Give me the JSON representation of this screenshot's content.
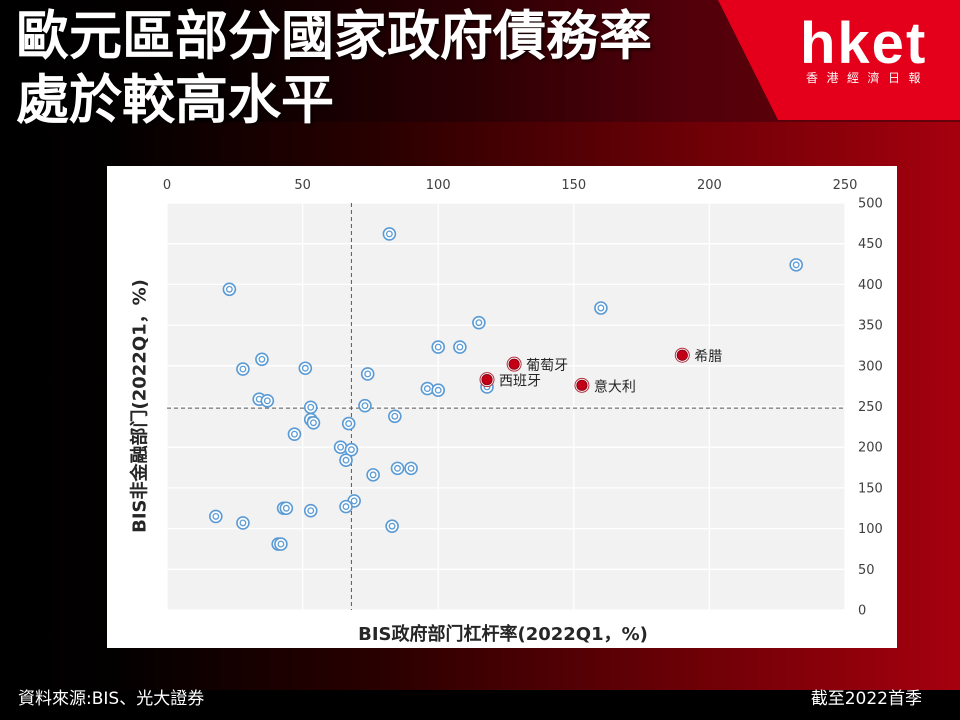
{
  "header": {
    "title_lines": [
      "歐元區部分國家政府債務率",
      "處於較高水平"
    ]
  },
  "logo": {
    "wordmark": "hket",
    "subtitle": "香港經濟日報",
    "brand_color": "#e4001b"
  },
  "footer": {
    "source": "資料來源:BIS、光大證券",
    "as_of": "截至2022首季"
  },
  "chart_data": {
    "type": "scatter",
    "xlabel": "BIS政府部门杠杆率(2022Q1，%)",
    "ylabel": "BIS非金融部门(2022Q1，%)",
    "xlim": [
      0,
      250
    ],
    "ylim": [
      0,
      500
    ],
    "xticks": [
      0,
      50,
      100,
      150,
      200,
      250
    ],
    "yticks": [
      0,
      50,
      100,
      150,
      200,
      250,
      300,
      350,
      400,
      450,
      500
    ],
    "x_axis_position": "top",
    "y_axis_position": "right",
    "grid": true,
    "reference_lines": {
      "x": 68,
      "y": 248,
      "style": "dashed"
    },
    "series": [
      {
        "color": "#5b9bd5",
        "points": [
          {
            "x": 82,
            "y": 462
          },
          {
            "x": 23,
            "y": 394
          },
          {
            "x": 232,
            "y": 424
          },
          {
            "x": 160,
            "y": 371
          },
          {
            "x": 115,
            "y": 353
          },
          {
            "x": 100,
            "y": 323
          },
          {
            "x": 108,
            "y": 323
          },
          {
            "x": 35,
            "y": 308
          },
          {
            "x": 28,
            "y": 296
          },
          {
            "x": 51,
            "y": 297
          },
          {
            "x": 74,
            "y": 290
          },
          {
            "x": 96,
            "y": 272
          },
          {
            "x": 100,
            "y": 270
          },
          {
            "x": 118,
            "y": 274
          },
          {
            "x": 34,
            "y": 259
          },
          {
            "x": 37,
            "y": 257
          },
          {
            "x": 53,
            "y": 249
          },
          {
            "x": 73,
            "y": 251
          },
          {
            "x": 53,
            "y": 234
          },
          {
            "x": 54,
            "y": 230
          },
          {
            "x": 67,
            "y": 229
          },
          {
            "x": 84,
            "y": 238
          },
          {
            "x": 47,
            "y": 216
          },
          {
            "x": 64,
            "y": 200
          },
          {
            "x": 68,
            "y": 197
          },
          {
            "x": 66,
            "y": 184
          },
          {
            "x": 76,
            "y": 166
          },
          {
            "x": 85,
            "y": 174
          },
          {
            "x": 90,
            "y": 174
          },
          {
            "x": 69,
            "y": 134
          },
          {
            "x": 66,
            "y": 127
          },
          {
            "x": 43,
            "y": 125
          },
          {
            "x": 44,
            "y": 125
          },
          {
            "x": 53,
            "y": 122
          },
          {
            "x": 18,
            "y": 115
          },
          {
            "x": 28,
            "y": 107
          },
          {
            "x": 83,
            "y": 103
          },
          {
            "x": 41,
            "y": 81
          },
          {
            "x": 42,
            "y": 81
          }
        ]
      },
      {
        "color": "#c40017",
        "points": [
          {
            "x": 128,
            "y": 302,
            "label": "葡萄牙"
          },
          {
            "x": 118,
            "y": 283,
            "label": "西班牙"
          },
          {
            "x": 153,
            "y": 276,
            "label": "意大利"
          },
          {
            "x": 190,
            "y": 313,
            "label": "希腊"
          }
        ]
      }
    ]
  }
}
